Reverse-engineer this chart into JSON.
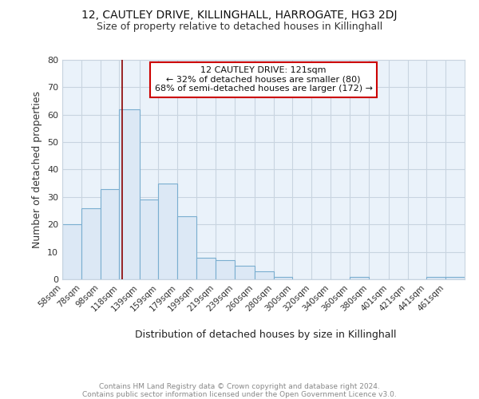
{
  "title1": "12, CAUTLEY DRIVE, KILLINGHALL, HARROGATE, HG3 2DJ",
  "title2": "Size of property relative to detached houses in Killinghall",
  "xlabel": "Distribution of detached houses by size in Killinghall",
  "ylabel": "Number of detached properties",
  "bin_edges": [
    58,
    78,
    98,
    118,
    139,
    159,
    179,
    199,
    219,
    239,
    260,
    280,
    300,
    320,
    340,
    360,
    380,
    401,
    421,
    441,
    461,
    481
  ],
  "bin_labels": [
    "58sqm",
    "78sqm",
    "98sqm",
    "118sqm",
    "139sqm",
    "159sqm",
    "179sqm",
    "199sqm",
    "219sqm",
    "239sqm",
    "260sqm",
    "280sqm",
    "300sqm",
    "320sqm",
    "340sqm",
    "360sqm",
    "380sqm",
    "401sqm",
    "421sqm",
    "441sqm",
    "461sqm"
  ],
  "counts": [
    20,
    26,
    33,
    62,
    29,
    35,
    23,
    8,
    7,
    5,
    3,
    1,
    0,
    0,
    0,
    1,
    0,
    0,
    0,
    1,
    1
  ],
  "bar_color": "#dce8f5",
  "bar_edge_color": "#7aaed0",
  "property_line_x": 121,
  "annotation_text": "12 CAUTLEY DRIVE: 121sqm\n← 32% of detached houses are smaller (80)\n68% of semi-detached houses are larger (172) →",
  "annotation_box_edge": "#cc0000",
  "vline_color": "#8b0000",
  "ylim": [
    0,
    80
  ],
  "yticks": [
    0,
    10,
    20,
    30,
    40,
    50,
    60,
    70,
    80
  ],
  "grid_color": "#c8d4e0",
  "footnote": "Contains HM Land Registry data © Crown copyright and database right 2024.\nContains public sector information licensed under the Open Government Licence v3.0.",
  "bg_color": "#ffffff",
  "plot_bg_color": "#eaf2fa"
}
